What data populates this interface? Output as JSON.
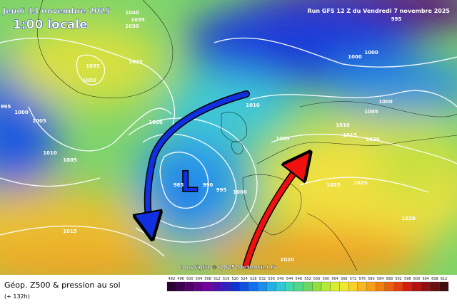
{
  "header": {
    "date": "Jeudi 13 novembre 2025",
    "time": "1:00 locale",
    "run": "Run GFS 12 Z du Vendredi 7 novembre 2025"
  },
  "map": {
    "low_label": "L",
    "copyright": "Copyright © 2025 Meteociel.fr",
    "isobar_labels": [
      "1040",
      "1035",
      "1030",
      "1035",
      "1030",
      "1025",
      "995",
      "1000",
      "1005",
      "1010",
      "1005",
      "1020",
      "1015",
      "985",
      "990",
      "995",
      "1000",
      "1010",
      "1005",
      "1000",
      "1005",
      "1010",
      "1015",
      "1020",
      "1025",
      "1025",
      "1020",
      "1020",
      "995",
      "1000",
      "1000"
    ]
  },
  "footer": {
    "title": "Géop. Z500 & pression au sol",
    "lead": "(+ 132h)"
  },
  "colorbar": {
    "labels": [
      492,
      496,
      500,
      504,
      508,
      512,
      516,
      520,
      524,
      528,
      532,
      536,
      540,
      544,
      548,
      552,
      556,
      560,
      564,
      568,
      572,
      576,
      580,
      584,
      588,
      592,
      596,
      600,
      604,
      608,
      612
    ]
  }
}
